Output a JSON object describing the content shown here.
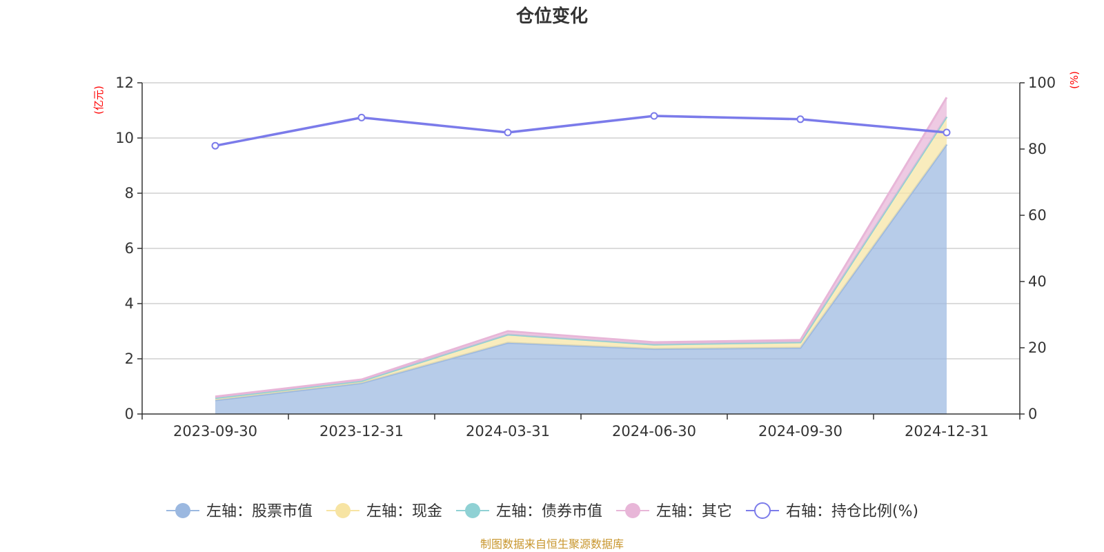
{
  "chart_data": {
    "type": "area",
    "title": "仓位变化",
    "categories": [
      "2023-09-30",
      "2023-12-31",
      "2024-03-31",
      "2024-06-30",
      "2024-09-30",
      "2024-12-31"
    ],
    "left_axis": {
      "unit": "(亿元)",
      "ylim": [
        0,
        12
      ],
      "ticks": [
        "0",
        "2",
        "4",
        "6",
        "8",
        "10",
        "12"
      ]
    },
    "right_axis": {
      "unit": "(%)",
      "ylim": [
        0,
        100
      ],
      "ticks": [
        "0",
        "20",
        "40",
        "60",
        "80",
        "100"
      ]
    },
    "grid": true,
    "legend_position": "bottom",
    "series": [
      {
        "name": "左轴：股票市值",
        "axis": "left",
        "kind": "stacked-area",
        "color": "#9bb8e0",
        "values": [
          0.5,
          1.12,
          2.58,
          2.36,
          2.4,
          9.77
        ]
      },
      {
        "name": "左轴：现金",
        "axis": "left",
        "kind": "stacked-area",
        "color": "#f7e4a3",
        "values": [
          0.08,
          0.08,
          0.3,
          0.16,
          0.2,
          1.0
        ]
      },
      {
        "name": "左轴：债券市值",
        "axis": "left",
        "kind": "stacked-area",
        "color": "#8fd1d4",
        "values": [
          0,
          0,
          0,
          0,
          0,
          0
        ]
      },
      {
        "name": "左轴：其它",
        "axis": "left",
        "kind": "stacked-area",
        "color": "#e8b6d8",
        "values": [
          0.05,
          0.05,
          0.12,
          0.08,
          0.08,
          0.7
        ]
      },
      {
        "name": "右轴：持仓比例(%)",
        "axis": "right",
        "kind": "line",
        "color": "#7b7bea",
        "values": [
          81,
          89.5,
          85,
          90,
          89,
          85
        ]
      }
    ],
    "source_text": "制图数据来自恒生聚源数据库"
  }
}
